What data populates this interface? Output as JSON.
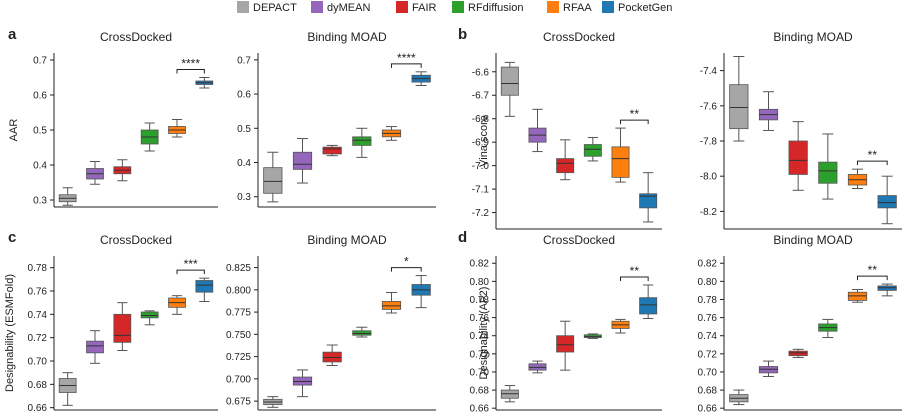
{
  "legend": [
    {
      "name": "DEPACT",
      "color": "#a6a6a6"
    },
    {
      "name": "dyMEAN",
      "color": "#9467bd"
    },
    {
      "name": "FAIR",
      "color": "#d62728"
    },
    {
      "name": "RFdiffusion",
      "color": "#2ca02c"
    },
    {
      "name": "RFAA",
      "color": "#ff7f0e"
    },
    {
      "name": "PocketGen",
      "color": "#1f77b4"
    }
  ],
  "chart_data": [
    {
      "panel": "a",
      "type": "box",
      "title": "CrossDocked",
      "ylabel": "AAR",
      "ylim": [
        0.28,
        0.72
      ],
      "ticks": [
        "0.3",
        "0.4",
        "0.5",
        "0.6",
        "0.7"
      ],
      "boxes": [
        {
          "method": "DEPACT",
          "whislo": 0.285,
          "q1": 0.295,
          "med": 0.305,
          "q3": 0.315,
          "whishi": 0.335
        },
        {
          "method": "dyMEAN",
          "whislo": 0.345,
          "q1": 0.36,
          "med": 0.375,
          "q3": 0.39,
          "whishi": 0.41
        },
        {
          "method": "FAIR",
          "whislo": 0.355,
          "q1": 0.375,
          "med": 0.385,
          "q3": 0.395,
          "whishi": 0.415
        },
        {
          "method": "RFdiffusion",
          "whislo": 0.44,
          "q1": 0.46,
          "med": 0.48,
          "q3": 0.5,
          "whishi": 0.52
        },
        {
          "method": "RFAA",
          "whislo": 0.48,
          "q1": 0.49,
          "med": 0.5,
          "q3": 0.51,
          "whishi": 0.53
        },
        {
          "method": "PocketGen",
          "whislo": 0.62,
          "q1": 0.63,
          "med": 0.635,
          "q3": 0.64,
          "whishi": 0.65
        }
      ],
      "sig": {
        "label": "****",
        "from": 4,
        "to": 5
      }
    },
    {
      "panel": "",
      "type": "box",
      "title": "Binding MOAD",
      "ylabel": "",
      "ylim": [
        0.27,
        0.72
      ],
      "ticks": [
        "0.3",
        "0.4",
        "0.5",
        "0.6",
        "0.7"
      ],
      "boxes": [
        {
          "method": "DEPACT",
          "whislo": 0.285,
          "q1": 0.31,
          "med": 0.345,
          "q3": 0.385,
          "whishi": 0.43
        },
        {
          "method": "dyMEAN",
          "whislo": 0.34,
          "q1": 0.38,
          "med": 0.395,
          "q3": 0.43,
          "whishi": 0.47
        },
        {
          "method": "FAIR",
          "whislo": 0.42,
          "q1": 0.425,
          "med": 0.44,
          "q3": 0.445,
          "whishi": 0.45
        },
        {
          "method": "RFdiffusion",
          "whislo": 0.415,
          "q1": 0.45,
          "med": 0.465,
          "q3": 0.475,
          "whishi": 0.5
        },
        {
          "method": "RFAA",
          "whislo": 0.465,
          "q1": 0.475,
          "med": 0.485,
          "q3": 0.495,
          "whishi": 0.505
        },
        {
          "method": "PocketGen",
          "whislo": 0.625,
          "q1": 0.635,
          "med": 0.645,
          "q3": 0.655,
          "whishi": 0.665
        }
      ],
      "sig": {
        "label": "****",
        "from": 4,
        "to": 5
      }
    },
    {
      "panel": "b",
      "type": "box",
      "title": "CrossDocked",
      "ylabel": "Vina score",
      "ylim": [
        -7.27,
        -6.52
      ],
      "ticks": [
        "-6.6",
        "-6.7",
        "-6.8",
        "-6.9",
        "-7.0",
        "-7.1",
        "-7.2"
      ],
      "boxes": [
        {
          "method": "DEPACT",
          "whislo": -6.79,
          "q1": -6.7,
          "med": -6.65,
          "q3": -6.58,
          "whishi": -6.56
        },
        {
          "method": "dyMEAN",
          "whislo": -6.94,
          "q1": -6.9,
          "med": -6.87,
          "q3": -6.84,
          "whishi": -6.76
        },
        {
          "method": "FAIR",
          "whislo": -7.06,
          "q1": -7.03,
          "med": -6.99,
          "q3": -6.97,
          "whishi": -6.89
        },
        {
          "method": "RFdiffusion",
          "whislo": -6.98,
          "q1": -6.96,
          "med": -6.93,
          "q3": -6.91,
          "whishi": -6.88
        },
        {
          "method": "RFAA",
          "whislo": -7.07,
          "q1": -7.05,
          "med": -6.97,
          "q3": -6.92,
          "whishi": -6.84
        },
        {
          "method": "PocketGen",
          "whislo": -7.24,
          "q1": -7.18,
          "med": -7.13,
          "q3": -7.12,
          "whishi": -7.03
        }
      ],
      "sig": {
        "label": "**",
        "from": 4,
        "to": 5
      }
    },
    {
      "panel": "",
      "type": "box",
      "title": "Binding MOAD",
      "ylabel": "",
      "ylim": [
        -8.3,
        -7.3
      ],
      "ticks": [
        "-7.4",
        "-7.6",
        "-7.8",
        "-8.0",
        "-8.2"
      ],
      "boxes": [
        {
          "method": "DEPACT",
          "whislo": -7.8,
          "q1": -7.73,
          "med": -7.61,
          "q3": -7.48,
          "whishi": -7.32
        },
        {
          "method": "dyMEAN",
          "whislo": -7.74,
          "q1": -7.68,
          "med": -7.65,
          "q3": -7.62,
          "whishi": -7.52
        },
        {
          "method": "FAIR",
          "whislo": -8.08,
          "q1": -7.99,
          "med": -7.91,
          "q3": -7.8,
          "whishi": -7.69
        },
        {
          "method": "RFdiffusion",
          "whislo": -8.13,
          "q1": -8.04,
          "med": -7.97,
          "q3": -7.92,
          "whishi": -7.76
        },
        {
          "method": "RFAA",
          "whislo": -8.07,
          "q1": -8.05,
          "med": -8.02,
          "q3": -7.99,
          "whishi": -7.96
        },
        {
          "method": "PocketGen",
          "whislo": -8.27,
          "q1": -8.18,
          "med": -8.15,
          "q3": -8.11,
          "whishi": -8.0
        }
      ],
      "sig": {
        "label": "**",
        "from": 4,
        "to": 5
      }
    },
    {
      "panel": "c",
      "type": "box",
      "title": "CrossDocked",
      "ylabel": "Designability (ESMFold)",
      "ylim": [
        0.658,
        0.79
      ],
      "ticks": [
        "0.66",
        "0.68",
        "0.70",
        "0.72",
        "0.74",
        "0.76",
        "0.78"
      ],
      "boxes": [
        {
          "method": "DEPACT",
          "whislo": 0.662,
          "q1": 0.673,
          "med": 0.679,
          "q3": 0.685,
          "whishi": 0.69
        },
        {
          "method": "dyMEAN",
          "whislo": 0.698,
          "q1": 0.707,
          "med": 0.713,
          "q3": 0.717,
          "whishi": 0.726
        },
        {
          "method": "FAIR",
          "whislo": 0.709,
          "q1": 0.716,
          "med": 0.722,
          "q3": 0.74,
          "whishi": 0.75
        },
        {
          "method": "RFdiffusion",
          "whislo": 0.731,
          "q1": 0.737,
          "med": 0.739,
          "q3": 0.742,
          "whishi": 0.743
        },
        {
          "method": "RFAA",
          "whislo": 0.74,
          "q1": 0.746,
          "med": 0.75,
          "q3": 0.754,
          "whishi": 0.756
        },
        {
          "method": "PocketGen",
          "whislo": 0.751,
          "q1": 0.759,
          "med": 0.765,
          "q3": 0.769,
          "whishi": 0.771
        }
      ],
      "sig": {
        "label": "***",
        "from": 4,
        "to": 5
      }
    },
    {
      "panel": "",
      "type": "box",
      "title": "Binding MOAD",
      "ylabel": "",
      "ylim": [
        0.665,
        0.838
      ],
      "ticks": [
        "0.675",
        "0.700",
        "0.725",
        "0.750",
        "0.775",
        "0.800",
        "0.825"
      ],
      "boxes": [
        {
          "method": "DEPACT",
          "whislo": 0.668,
          "q1": 0.671,
          "med": 0.674,
          "q3": 0.677,
          "whishi": 0.68
        },
        {
          "method": "dyMEAN",
          "whislo": 0.68,
          "q1": 0.693,
          "med": 0.697,
          "q3": 0.702,
          "whishi": 0.71
        },
        {
          "method": "FAIR",
          "whislo": 0.715,
          "q1": 0.719,
          "med": 0.724,
          "q3": 0.73,
          "whishi": 0.738
        },
        {
          "method": "RFdiffusion",
          "whislo": 0.747,
          "q1": 0.749,
          "med": 0.751,
          "q3": 0.754,
          "whishi": 0.758
        },
        {
          "method": "RFAA",
          "whislo": 0.774,
          "q1": 0.778,
          "med": 0.782,
          "q3": 0.787,
          "whishi": 0.797
        },
        {
          "method": "PocketGen",
          "whislo": 0.78,
          "q1": 0.794,
          "med": 0.8,
          "q3": 0.806,
          "whishi": 0.816
        }
      ],
      "sig": {
        "label": "*",
        "from": 4,
        "to": 5
      }
    },
    {
      "panel": "d",
      "type": "box",
      "title": "CrossDocked",
      "ylabel": "Designability (AF2)",
      "ylim": [
        0.658,
        0.828
      ],
      "ticks": [
        "0.66",
        "0.68",
        "0.70",
        "0.72",
        "0.74",
        "0.76",
        "0.78",
        "0.80",
        "0.82"
      ],
      "boxes": [
        {
          "method": "DEPACT",
          "whislo": 0.667,
          "q1": 0.671,
          "med": 0.676,
          "q3": 0.68,
          "whishi": 0.685
        },
        {
          "method": "dyMEAN",
          "whislo": 0.699,
          "q1": 0.702,
          "med": 0.705,
          "q3": 0.709,
          "whishi": 0.712
        },
        {
          "method": "FAIR",
          "whislo": 0.702,
          "q1": 0.722,
          "med": 0.73,
          "q3": 0.74,
          "whishi": 0.756
        },
        {
          "method": "RFdiffusion",
          "whislo": 0.737,
          "q1": 0.738,
          "med": 0.739,
          "q3": 0.741,
          "whishi": 0.742
        },
        {
          "method": "RFAA",
          "whislo": 0.743,
          "q1": 0.748,
          "med": 0.752,
          "q3": 0.756,
          "whishi": 0.758
        },
        {
          "method": "PocketGen",
          "whislo": 0.759,
          "q1": 0.764,
          "med": 0.774,
          "q3": 0.782,
          "whishi": 0.796
        }
      ],
      "sig": {
        "label": "**",
        "from": 4,
        "to": 5
      }
    },
    {
      "panel": "",
      "type": "box",
      "title": "Binding MOAD",
      "ylabel": "",
      "ylim": [
        0.658,
        0.828
      ],
      "ticks": [
        "0.66",
        "0.68",
        "0.70",
        "0.72",
        "0.74",
        "0.76",
        "0.78",
        "0.80",
        "0.82"
      ],
      "boxes": [
        {
          "method": "DEPACT",
          "whislo": 0.664,
          "q1": 0.667,
          "med": 0.671,
          "q3": 0.675,
          "whishi": 0.68
        },
        {
          "method": "dyMEAN",
          "whislo": 0.695,
          "q1": 0.699,
          "med": 0.703,
          "q3": 0.706,
          "whishi": 0.712
        },
        {
          "method": "FAIR",
          "whislo": 0.716,
          "q1": 0.718,
          "med": 0.721,
          "q3": 0.723,
          "whishi": 0.725
        },
        {
          "method": "RFdiffusion",
          "whislo": 0.738,
          "q1": 0.745,
          "med": 0.749,
          "q3": 0.753,
          "whishi": 0.758
        },
        {
          "method": "RFAA",
          "whislo": 0.777,
          "q1": 0.779,
          "med": 0.784,
          "q3": 0.788,
          "whishi": 0.791
        },
        {
          "method": "PocketGen",
          "whislo": 0.784,
          "q1": 0.79,
          "med": 0.793,
          "q3": 0.795,
          "whishi": 0.797
        }
      ],
      "sig": {
        "label": "**",
        "from": 4,
        "to": 5
      }
    }
  ]
}
